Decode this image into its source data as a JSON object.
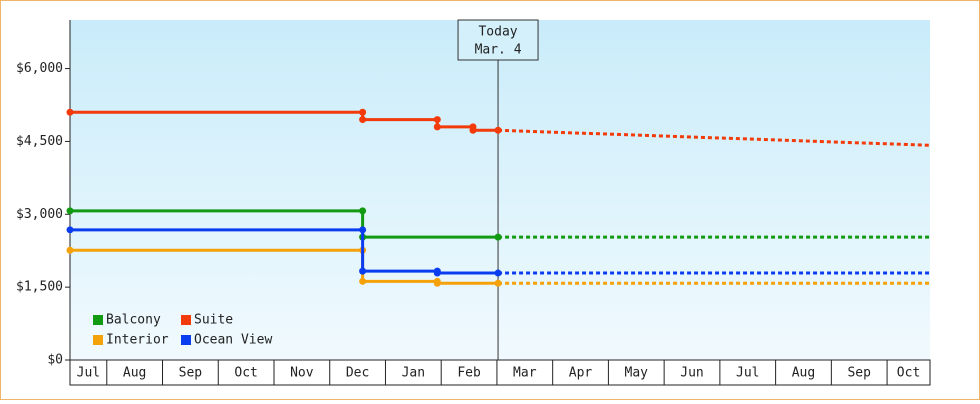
{
  "chart_data": {
    "type": "step",
    "xlim": [
      0.34,
      15.77
    ],
    "months": [
      "Jul",
      "Aug",
      "Sep",
      "Oct",
      "Nov",
      "Dec",
      "Jan",
      "Feb",
      "Mar",
      "Apr",
      "May",
      "Jun",
      "Jul",
      "Aug",
      "Sep",
      "Oct"
    ],
    "xticks": [
      1,
      2,
      3,
      4,
      5,
      6,
      7,
      8,
      9,
      10,
      11,
      12,
      13,
      14,
      15
    ],
    "ylim": [
      0,
      7000
    ],
    "yticks": [
      {
        "value": 0,
        "label": "$0"
      },
      {
        "value": 1500,
        "label": "$1,500"
      },
      {
        "value": 3000,
        "label": "$3,000"
      },
      {
        "value": 4500,
        "label": "$4,500"
      },
      {
        "value": 6000,
        "label": "$6,000"
      }
    ],
    "today": {
      "x": 8.02,
      "label": "Today",
      "date": "Mar. 4"
    },
    "series": [
      {
        "name": "Balcony",
        "color": "#129a12",
        "x": [
          0.34,
          5.59,
          8.02
        ],
        "values": [
          3070,
          2530,
          2530
        ],
        "forecast": {
          "x": [
            8.02,
            15.77
          ],
          "values": [
            2530,
            2530
          ]
        }
      },
      {
        "name": "Suite",
        "color": "#f23a0a",
        "x": [
          0.34,
          5.59,
          6.93,
          7.57,
          8.02
        ],
        "values": [
          5100,
          4950,
          4800,
          4730,
          4730
        ],
        "forecast": {
          "x": [
            8.02,
            15.77
          ],
          "values": [
            4730,
            4420
          ]
        }
      },
      {
        "name": "Interior",
        "color": "#f5a20a",
        "x": [
          0.34,
          5.59,
          6.93,
          8.02
        ],
        "values": [
          2260,
          1620,
          1580,
          1580
        ],
        "forecast": {
          "x": [
            8.02,
            15.77
          ],
          "values": [
            1580,
            1580
          ]
        }
      },
      {
        "name": "Ocean View",
        "color": "#0b3df0",
        "x": [
          0.34,
          5.59,
          6.93,
          8.02
        ],
        "values": [
          2680,
          1830,
          1790,
          1790
        ],
        "forecast": {
          "x": [
            8.02,
            15.77
          ],
          "values": [
            1790,
            1790
          ]
        }
      }
    ]
  }
}
